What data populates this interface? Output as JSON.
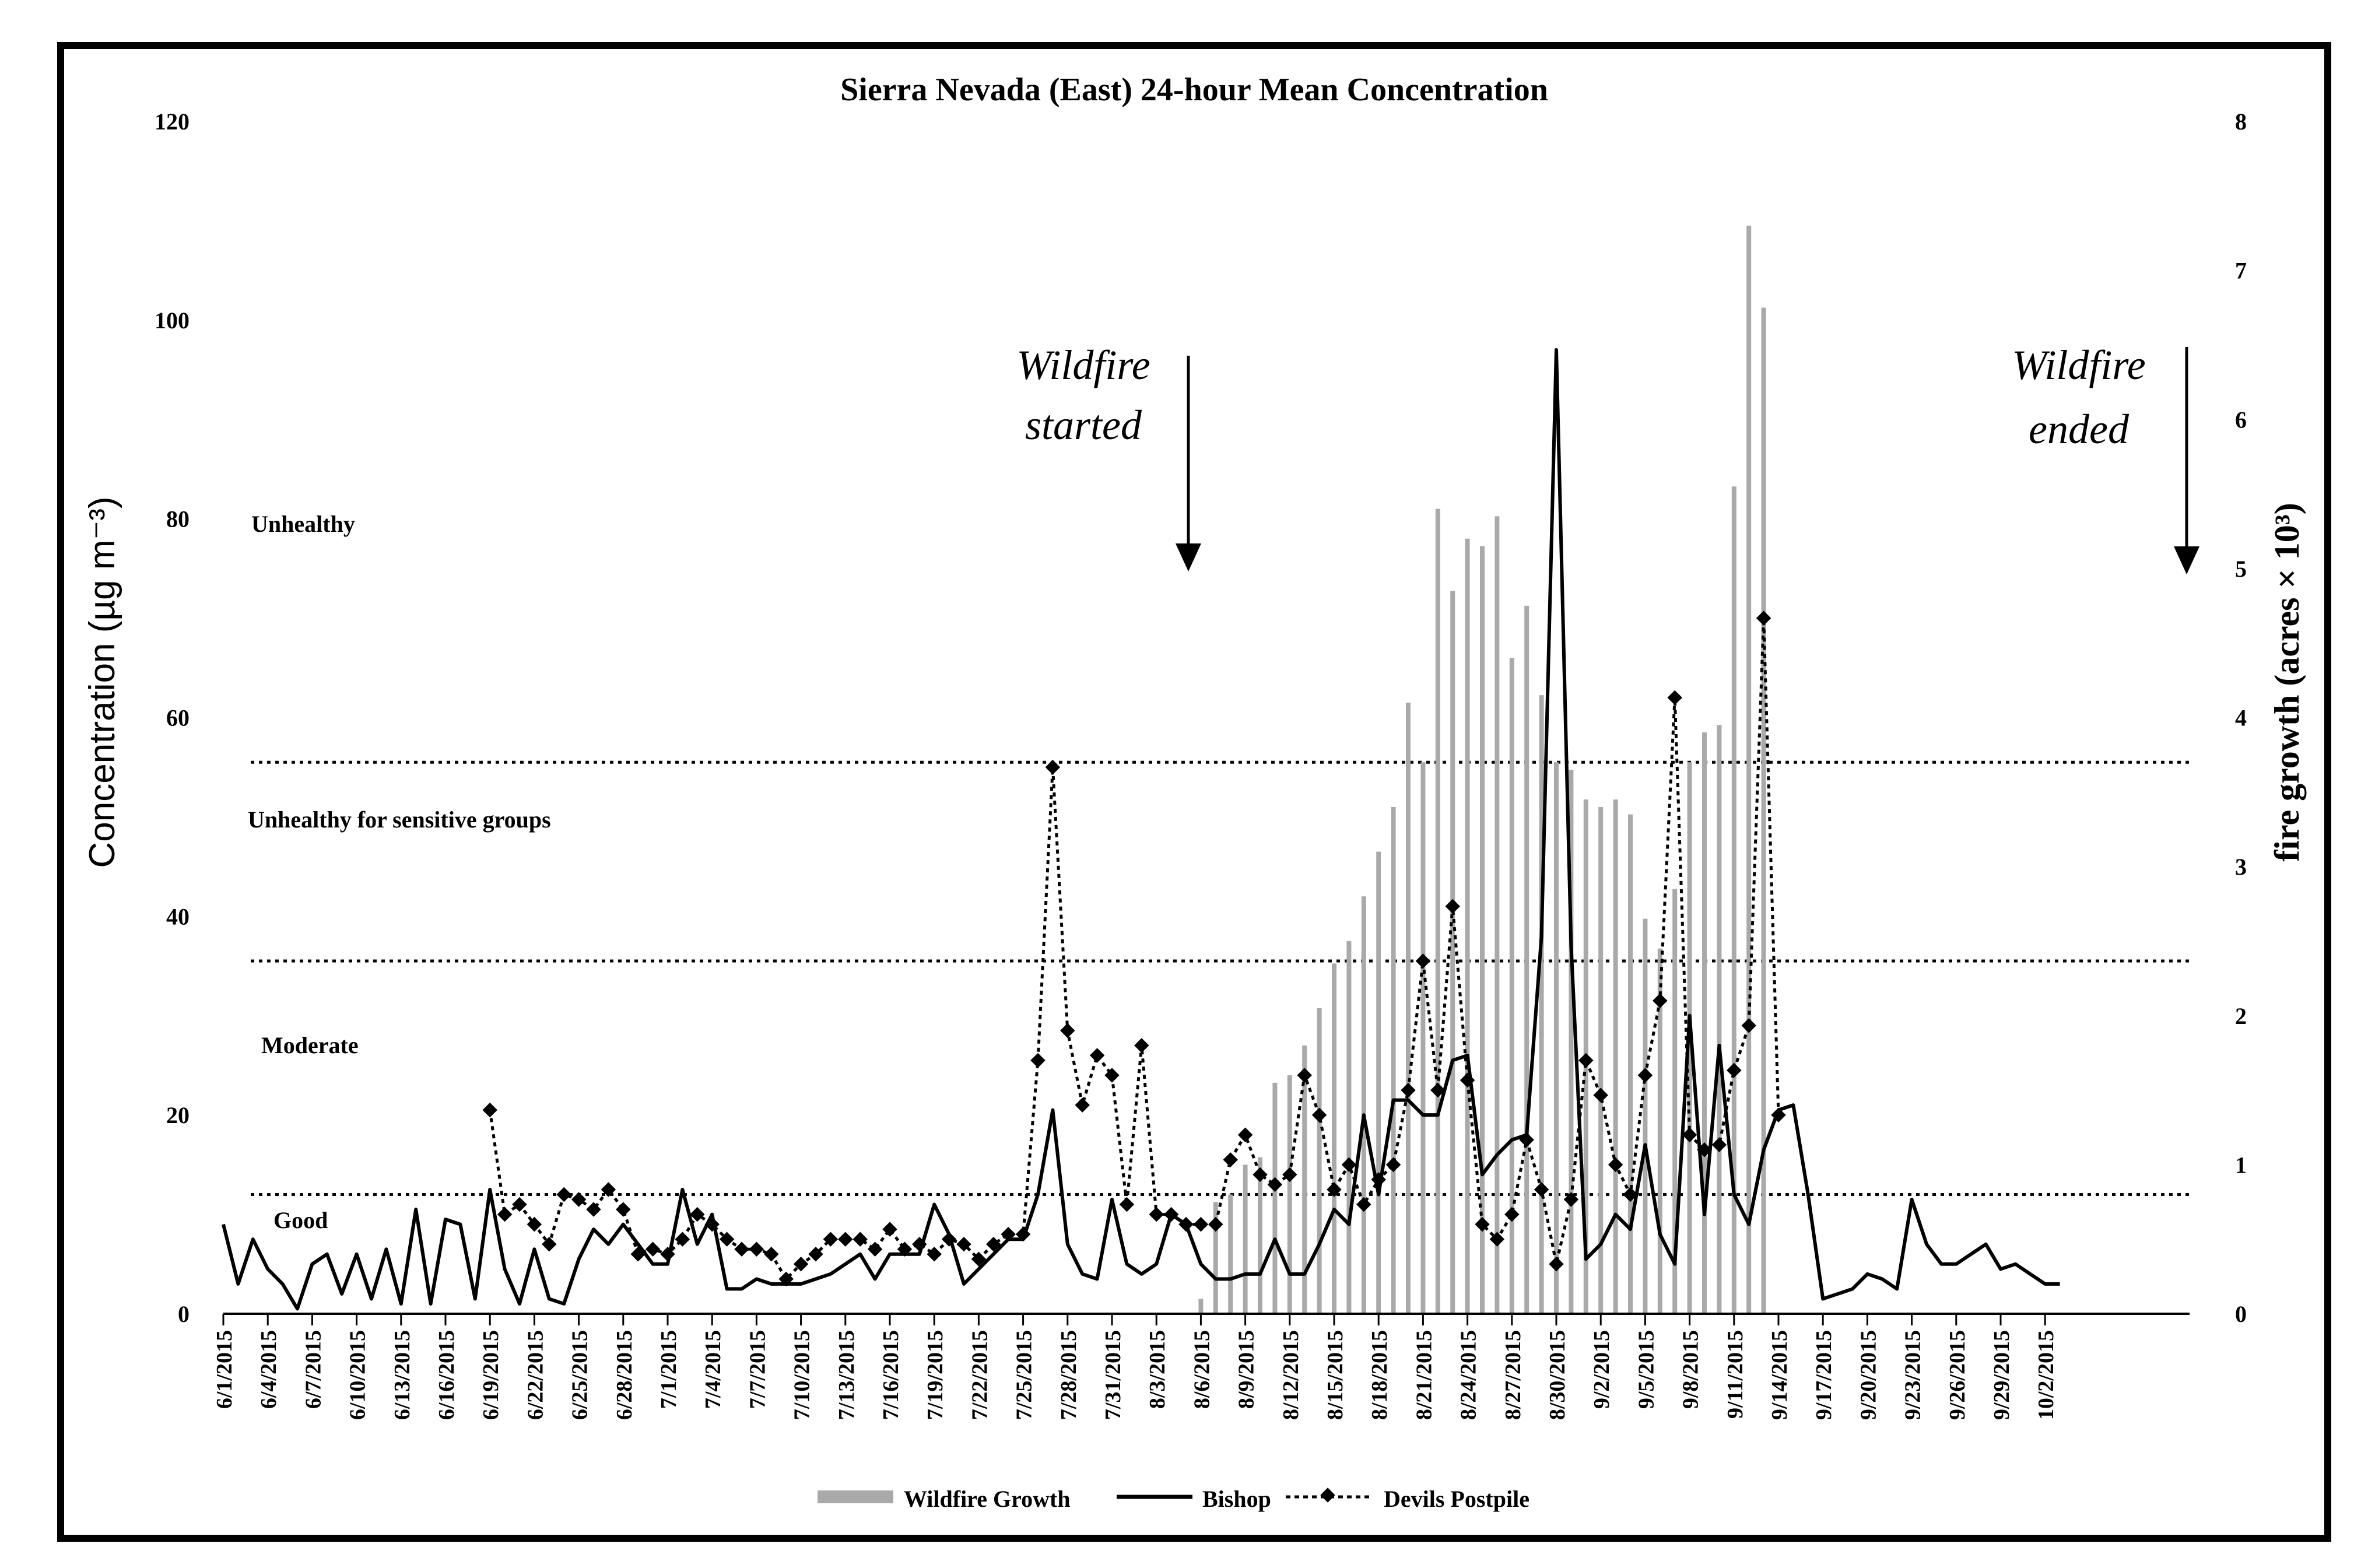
{
  "chart_data": {
    "type": "bar+line",
    "title": "Sierra Nevada (East) 24-hour Mean Concentration",
    "ylabel": "Concentration (µg m⁻³)",
    "y2label": "fire growth (acres × 10³)",
    "ylim": [
      0,
      120
    ],
    "y2lim": [
      0,
      8
    ],
    "yticks": [
      "0",
      "20",
      "40",
      "60",
      "80",
      "100",
      "120"
    ],
    "y2ticks": [
      "0",
      "1",
      "2",
      "3",
      "4",
      "5",
      "6",
      "7",
      "8"
    ],
    "xlabels": [
      "6/1/2015",
      "6/4/2015",
      "6/7/2015",
      "6/10/2015",
      "6/13/2015",
      "6/16/2015",
      "6/19/2015",
      "6/22/2015",
      "6/25/2015",
      "6/28/2015",
      "7/1/2015",
      "7/4/2015",
      "7/7/2015",
      "7/10/2015",
      "7/13/2015",
      "7/16/2015",
      "7/19/2015",
      "7/22/2015",
      "7/25/2015",
      "7/28/2015",
      "7/31/2015",
      "8/3/2015",
      "8/6/2015",
      "8/9/2015",
      "8/12/2015",
      "8/15/2015",
      "8/18/2015",
      "8/21/2015",
      "8/24/2015",
      "8/27/2015",
      "8/30/2015",
      "9/2/2015",
      "9/5/2015",
      "9/8/2015",
      "9/11/2015",
      "9/14/2015",
      "9/17/2015",
      "9/20/2015",
      "9/23/2015",
      "9/26/2015",
      "9/29/2015",
      "10/2/2015"
    ],
    "thresholds": [
      {
        "label": "Good",
        "value": 12
      },
      {
        "label": "Moderate",
        "value": 35.5
      },
      {
        "label": "Unhealthy for sensitive groups",
        "value": 55.5
      },
      {
        "label": "Unhealthy",
        "value": 80
      }
    ],
    "annotations": [
      {
        "lines": [
          "Wildfire",
          "started"
        ],
        "day": 60
      },
      {
        "lines": [
          "Wildfire",
          "ended"
        ],
        "day": 123
      }
    ],
    "legend": {
      "position": "bottom",
      "entries": [
        "Wildfire Growth",
        "Bishop",
        "Devils Postpile"
      ]
    },
    "series": [
      {
        "name": "Bishop",
        "type": "line",
        "axis": "left",
        "start_day": 0,
        "values": [
          9,
          3,
          7.5,
          4.5,
          3,
          0.5,
          5,
          6,
          2,
          6,
          1.5,
          6.5,
          1,
          10.5,
          1,
          9.5,
          9,
          1.5,
          12.5,
          4.5,
          1,
          6.5,
          1.5,
          1,
          5.5,
          8.5,
          7,
          9,
          7,
          5,
          5,
          12.5,
          7,
          10,
          2.5,
          2.5,
          3.5,
          3,
          3,
          3,
          3.5,
          4,
          5,
          6,
          3.5,
          6,
          6,
          6,
          11,
          8,
          3,
          4.5,
          6,
          7.5,
          7.5,
          12,
          20.5,
          7,
          4,
          3.5,
          11.5,
          5,
          4,
          5,
          10,
          9,
          5,
          3.5,
          3.5,
          4,
          4,
          7.5,
          4,
          4,
          7,
          10.5,
          9,
          20,
          12,
          21.5,
          21.5,
          20,
          20,
          25.5,
          26,
          14,
          16,
          17.5,
          18,
          38,
          97,
          37,
          5.5,
          7,
          10,
          8.5,
          17,
          8,
          5,
          30,
          10,
          27,
          12,
          9,
          16.5,
          20.5,
          21,
          12,
          1.5,
          2,
          2.5,
          4,
          3.5,
          2.5,
          11.5,
          7,
          5,
          5,
          6,
          7,
          4.5,
          5,
          4,
          3,
          3
        ]
      },
      {
        "name": "Devils Postpile",
        "type": "line",
        "axis": "left",
        "start_day": 18,
        "values": [
          20.5,
          10,
          11,
          9,
          7,
          12,
          11.5,
          10.5,
          12.5,
          10.5,
          6,
          6.5,
          6,
          7.5,
          10,
          9,
          7.5,
          6.5,
          6.5,
          6,
          3.5,
          5,
          6,
          7.5,
          7.5,
          7.5,
          6.5,
          8.5,
          6.5,
          7,
          6,
          7.5,
          7,
          5.5,
          7,
          8,
          8,
          25.5,
          55,
          28.5,
          21,
          26,
          24,
          11,
          27,
          10,
          10,
          9,
          9,
          9,
          15.5,
          18,
          14,
          13,
          14,
          24,
          20,
          12.5,
          15,
          11,
          13.5,
          15,
          22.5,
          35.5,
          22.5,
          41,
          23.5,
          9,
          7.5,
          10,
          17.5,
          12.5,
          5,
          11.5,
          25.5,
          22,
          15,
          12,
          24,
          31.5,
          62,
          18,
          16.5,
          17,
          24.5,
          29,
          70,
          20
        ]
      },
      {
        "name": "Wildfire Growth",
        "type": "bar",
        "axis": "right",
        "start_day": 66,
        "values": [
          0.1,
          0.75,
          0.8,
          1.0,
          1.05,
          1.55,
          1.6,
          1.8,
          2.05,
          2.35,
          2.5,
          2.8,
          3.1,
          3.4,
          4.1,
          3.7,
          5.4,
          4.85,
          5.2,
          5.15,
          5.35,
          4.4,
          4.75,
          4.15,
          3.7,
          3.65,
          3.45,
          3.4,
          3.45,
          3.35,
          2.65,
          2.45,
          2.85,
          3.7,
          3.9,
          3.95,
          5.55,
          7.3,
          6.75
        ]
      }
    ]
  }
}
